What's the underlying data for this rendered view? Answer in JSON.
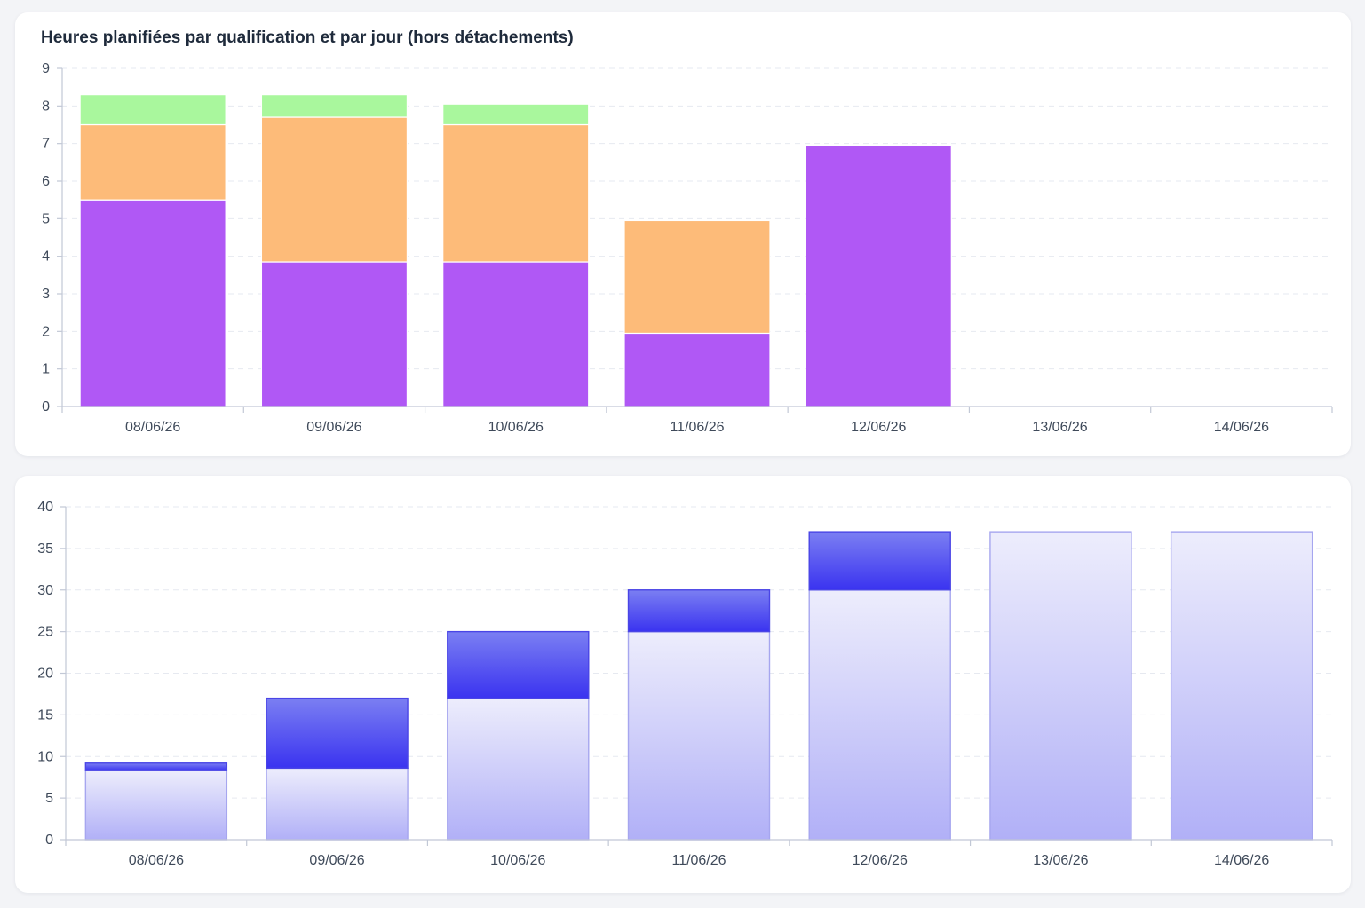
{
  "colors": {
    "purple": "#b058f5",
    "orange": "#fdbb79",
    "green": "#a9f79d",
    "blue_dark": "#3a33f0",
    "blue_light": "#7b7ff2",
    "lavender_top": "#ededfc",
    "lavender_bottom": "#b1b0f7",
    "axis": "#c2c8d6",
    "grid": "#e6e9f0"
  },
  "chart_data": [
    {
      "type": "bar",
      "stacked": true,
      "title": "Heures planifiées par qualification et par jour (hors détachements)",
      "categories": [
        "08/06/26",
        "09/06/26",
        "10/06/26",
        "11/06/26",
        "12/06/26",
        "13/06/26",
        "14/06/26"
      ],
      "series": [
        {
          "color": "#b058f5",
          "values": [
            5.5,
            3.85,
            3.85,
            1.95,
            6.95,
            0,
            0
          ]
        },
        {
          "color": "#fdbb79",
          "values": [
            2.0,
            3.85,
            3.65,
            3.0,
            0,
            0,
            0
          ]
        },
        {
          "color": "#a9f79d",
          "values": [
            0.8,
            0.6,
            0.55,
            0,
            0,
            0,
            0
          ]
        }
      ],
      "ylim": [
        0,
        9
      ],
      "yticks": [
        0,
        1,
        2,
        3,
        4,
        5,
        6,
        7,
        8,
        9
      ],
      "grid": true
    },
    {
      "type": "bar",
      "stacked": true,
      "categories": [
        "08/06/26",
        "09/06/26",
        "10/06/26",
        "11/06/26",
        "12/06/26",
        "13/06/26",
        "14/06/26"
      ],
      "series": [
        {
          "style": "light",
          "values": [
            8.3,
            8.6,
            17,
            25,
            30,
            37,
            37
          ]
        },
        {
          "style": "dark",
          "values": [
            0.9,
            8.4,
            8,
            5,
            7,
            0,
            0
          ]
        }
      ],
      "ylim": [
        0,
        40
      ],
      "yticks": [
        0,
        5,
        10,
        15,
        20,
        25,
        30,
        35,
        40
      ],
      "grid": true
    }
  ]
}
